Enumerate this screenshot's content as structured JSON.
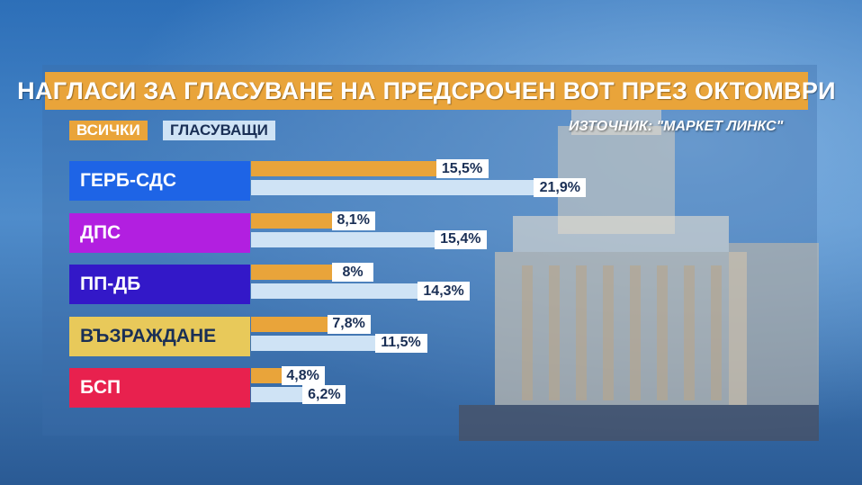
{
  "title": "НАГЛАСИ ЗА ГЛАСУВАНЕ НА ПРЕДСРОЧЕН ВОТ ПРЕЗ ОКТОМВРИ",
  "legend": {
    "all": "ВСИЧКИ",
    "voters": "ГЛАСУВАЩИ"
  },
  "source": "ИЗТОЧНИК: \"МАРКЕТ ЛИНКС\"",
  "colors": {
    "all": "#e9a43a",
    "voters": "#cfe3f5"
  },
  "chart_data": {
    "type": "bar",
    "orientation": "horizontal",
    "title": "НАГЛАСИ ЗА ГЛАСУВАНЕ НА ПРЕДСРОЧЕН ВОТ ПРЕЗ ОКТОМВРИ",
    "categories": [
      "ГЕРБ-СДС",
      "ДПС",
      "ПП-ДБ",
      "ВЪЗРАЖДАНЕ",
      "БСП"
    ],
    "category_colors": [
      "#1e64e6",
      "#b21fe0",
      "#3318c8",
      "#e8c95a",
      "#e8214e"
    ],
    "category_text_colors": [
      "#ffffff",
      "#ffffff",
      "#ffffff",
      "#1a2f55",
      "#ffffff"
    ],
    "series": [
      {
        "name": "ВСИЧКИ",
        "values": [
          15.5,
          8.1,
          8,
          7.8,
          4.8
        ],
        "labels": [
          "15,5%",
          "8,1%",
          "8%",
          "7,8%",
          "4,8%"
        ]
      },
      {
        "name": "ГЛАСУВАЩИ",
        "values": [
          21.9,
          15.4,
          14.3,
          11.5,
          6.2
        ],
        "labels": [
          "21,9%",
          "15,4%",
          "14,3%",
          "11,5%",
          "6,2%"
        ]
      }
    ],
    "legend_position": "top-left",
    "grid": false
  }
}
